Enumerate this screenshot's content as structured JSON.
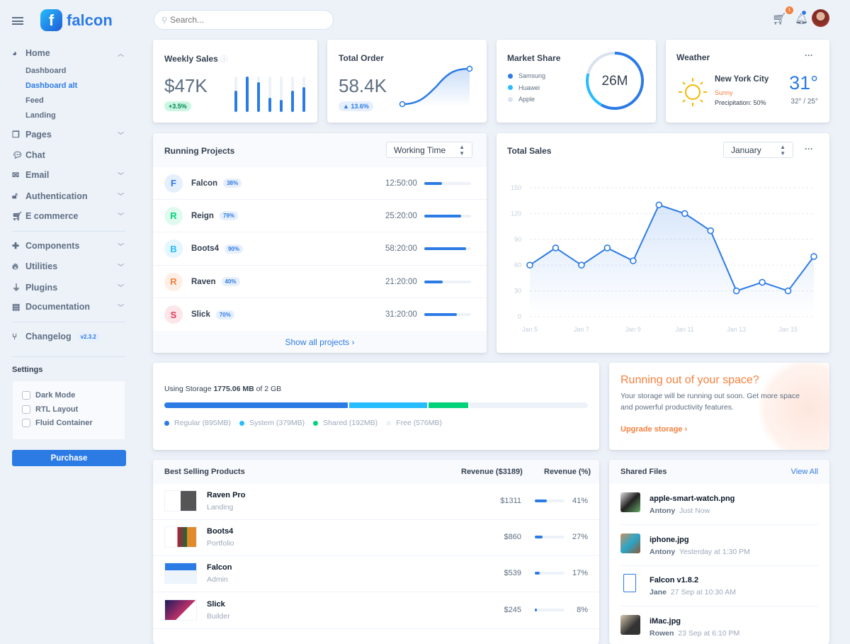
{
  "brand": {
    "name": "falcon"
  },
  "search": {
    "placeholder": "Search..."
  },
  "header": {
    "cart_count": "1"
  },
  "sidebar": {
    "home": {
      "label": "Home",
      "icon": "pie-chart-icon",
      "children": [
        "Dashboard",
        "Dashboard alt",
        "Feed",
        "Landing"
      ],
      "active": "Dashboard alt"
    },
    "items": [
      {
        "label": "Pages",
        "icon": "copy-icon",
        "chev": true
      },
      {
        "label": "Chat",
        "icon": "comments-icon",
        "chev": false
      },
      {
        "label": "Email",
        "icon": "envelope-open-icon",
        "chev": true
      },
      {
        "label": "Authentication",
        "icon": "unlock-icon",
        "chev": true
      },
      {
        "label": "E commerce",
        "icon": "cart-icon",
        "chev": true
      }
    ],
    "items2": [
      {
        "label": "Components",
        "icon": "puzzle-icon",
        "chev": true
      },
      {
        "label": "Utilities",
        "icon": "fire-icon",
        "chev": true
      },
      {
        "label": "Plugins",
        "icon": "plug-icon",
        "chev": true
      },
      {
        "label": "Documentation",
        "icon": "book-icon",
        "chev": true
      }
    ],
    "changelog": {
      "label": "Changelog",
      "version": "v2.3.2"
    },
    "settings": {
      "title": "Settings",
      "options": [
        "Dark Mode",
        "RTL Layout",
        "Fluid Container"
      ]
    },
    "purchase": "Purchase"
  },
  "weekly": {
    "title": "Weekly Sales",
    "value": "$47K",
    "change": "+3.5%",
    "bars": [
      0.6,
      1,
      0.85,
      0.4,
      0.35,
      0.6,
      0.7
    ]
  },
  "order": {
    "title": "Total Order",
    "value": "58.4K",
    "change": "▲ 13.6%"
  },
  "market": {
    "title": "Market Share",
    "total": "26M",
    "legend": [
      {
        "name": "Samsung",
        "color": "#2c7be5",
        "share": 0.58
      },
      {
        "name": "Huawei",
        "color": "#27bcfd",
        "share": 0.21
      },
      {
        "name": "Apple",
        "color": "#d8e2ef",
        "share": 0.21
      }
    ]
  },
  "weather": {
    "title": "Weather",
    "city": "New York City",
    "condition": "Sunny",
    "precip": "Precipitation: 50%",
    "temp": "31°",
    "range": "32° / 25°"
  },
  "projects": {
    "title": "Running Projects",
    "select": "Working Time",
    "footer": "Show all projects ›",
    "rows": [
      {
        "letter": "F",
        "name": "Falcon",
        "pct": "38%",
        "time": "12:50:00",
        "progress": 0.38,
        "color": "#2c7be5",
        "bg": "#e6effc"
      },
      {
        "letter": "R",
        "name": "Reign",
        "pct": "79%",
        "time": "25:20:00",
        "progress": 0.79,
        "color": "#00d27a",
        "bg": "#e0faef"
      },
      {
        "letter": "B",
        "name": "Boots4",
        "pct": "90%",
        "time": "58:20:00",
        "progress": 0.9,
        "color": "#27bcfd",
        "bg": "#e5f6fe"
      },
      {
        "letter": "R",
        "name": "Raven",
        "pct": "40%",
        "time": "21:20:00",
        "progress": 0.4,
        "color": "#f5803e",
        "bg": "#fdefe6"
      },
      {
        "letter": "S",
        "name": "Slick",
        "pct": "70%",
        "time": "31:20:00",
        "progress": 0.7,
        "color": "#e63757",
        "bg": "#fce6ea"
      }
    ]
  },
  "chart_data": {
    "type": "line",
    "title": "Total Sales",
    "select": "January",
    "x": [
      "Jan 5",
      "Jan 6",
      "Jan 7",
      "Jan 8",
      "Jan 9",
      "Jan 10",
      "Jan 11",
      "Jan 12",
      "Jan 13",
      "Jan 14",
      "Jan 15",
      "Jan 16"
    ],
    "xticks": [
      "Jan 5",
      "Jan 7",
      "Jan 9",
      "Jan 11",
      "Jan 13",
      "Jan 15"
    ],
    "values": [
      60,
      80,
      60,
      80,
      65,
      130,
      120,
      100,
      30,
      40,
      30,
      70
    ],
    "ylim": [
      0,
      150
    ],
    "yticks": [
      0,
      30,
      60,
      90,
      120,
      150
    ],
    "grid": true,
    "color": "#2c7be5"
  },
  "storage": {
    "prefix": "Using Storage ",
    "used": "1775.06 MB",
    "suffix": " of 2 GB",
    "segments": [
      {
        "label": "Regular (895MB)",
        "mb": 895,
        "color": "#2c7be5"
      },
      {
        "label": "System (379MB)",
        "mb": 379,
        "color": "#27bcfd"
      },
      {
        "label": "Shared (192MB)",
        "mb": 192,
        "color": "#00d27a"
      },
      {
        "label": "Free (576MB)",
        "mb": 576,
        "color": "#edf2f9"
      }
    ]
  },
  "space": {
    "title": "Running out of your space?",
    "text": "Your storage will be running out soon. Get more space and powerful productivity features.",
    "link": "Upgrade storage ›"
  },
  "products": {
    "title": "Best Selling Products",
    "col1": "Revenue ($3189)",
    "col2": "Revenue (%)",
    "rows": [
      {
        "name": "Raven Pro",
        "cat": "Landing",
        "rev": "$1311",
        "pct": "41%",
        "share": 0.41
      },
      {
        "name": "Boots4",
        "cat": "Portfolio",
        "rev": "$860",
        "pct": "27%",
        "share": 0.27
      },
      {
        "name": "Falcon",
        "cat": "Admin",
        "rev": "$539",
        "pct": "17%",
        "share": 0.17
      },
      {
        "name": "Slick",
        "cat": "Builder",
        "rev": "$245",
        "pct": "8%",
        "share": 0.08
      }
    ]
  },
  "files": {
    "title": "Shared Files",
    "view_all": "View All",
    "rows": [
      {
        "name": "apple-smart-watch.png",
        "user": "Antony",
        "time": "Just Now"
      },
      {
        "name": "iphone.jpg",
        "user": "Antony",
        "time": "Yesterday at 1:30 PM"
      },
      {
        "name": "Falcon v1.8.2",
        "user": "Jane",
        "time": "27 Sep at 10:30 AM"
      },
      {
        "name": "iMac.jpg",
        "user": "Rowen",
        "time": "23 Sep at 6:10 PM"
      }
    ]
  }
}
